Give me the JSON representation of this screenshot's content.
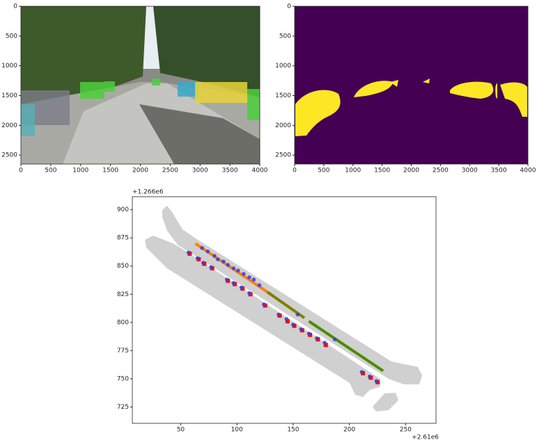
{
  "chart_data": [
    {
      "type": "image",
      "xlim": [
        0,
        4000
      ],
      "ylim": [
        2650,
        0
      ],
      "xticks": [
        0,
        500,
        1000,
        1500,
        2000,
        2500,
        3000,
        3500,
        4000
      ],
      "yticks": [
        0,
        500,
        1000,
        1500,
        2000,
        2500
      ]
    },
    {
      "type": "image",
      "xlim": [
        0,
        4000
      ],
      "ylim": [
        2650,
        0
      ],
      "xticks": [
        0,
        500,
        1000,
        1500,
        2000,
        2500,
        3000,
        3500,
        4000
      ],
      "yticks": [
        0,
        500,
        1000,
        1500,
        2000,
        2500
      ]
    },
    {
      "type": "scatter",
      "x_offset": "+2.61e6",
      "y_offset": "+1.266e6",
      "xlim": [
        7,
        277
      ],
      "ylim": [
        710.5,
        911.5
      ],
      "xticks": [
        50,
        100,
        150,
        200,
        250
      ],
      "yticks": [
        725,
        750,
        775,
        800,
        825,
        850,
        875,
        900
      ],
      "series": [
        {
          "marker": "line",
          "color": "#ff7f0e",
          "x": [
            63,
            127
          ],
          "values": [
            870,
            827
          ]
        },
        {
          "marker": "line",
          "color": "#7f7f00",
          "x": [
            127,
            160
          ],
          "values": [
            827,
            804
          ]
        },
        {
          "marker": "line",
          "color": "#4c8c00",
          "x": [
            164,
            230
          ],
          "values": [
            801,
            757
          ]
        },
        {
          "marker": "square",
          "color": "#ff0000",
          "x": [
            58,
            66,
            71,
            78,
            92,
            98,
            105,
            112,
            125,
            138,
            145,
            151,
            158,
            165,
            172,
            179,
            212,
            219,
            225
          ],
          "values": [
            861,
            856,
            852,
            848,
            837,
            834,
            830,
            825,
            815,
            806,
            801,
            797,
            793,
            789,
            785,
            780,
            755,
            751,
            747
          ]
        },
        {
          "marker": "circle",
          "color": "#3d3dd8",
          "x": [
            69,
            74,
            80,
            83,
            88,
            92,
            97,
            101,
            106,
            111,
            115,
            120,
            154,
            187,
            57,
            65,
            70,
            77,
            91,
            97,
            104,
            111,
            124,
            137,
            144,
            150,
            157,
            164,
            171,
            178,
            211,
            218,
            224
          ],
          "values": [
            866,
            863,
            859,
            856,
            854,
            851,
            848,
            846,
            843,
            840,
            838,
            833,
            807,
            785,
            862,
            857,
            853,
            849,
            838,
            835,
            831,
            826,
            816,
            807,
            803,
            798,
            794,
            790,
            786,
            782,
            756,
            752,
            748
          ]
        }
      ]
    }
  ]
}
